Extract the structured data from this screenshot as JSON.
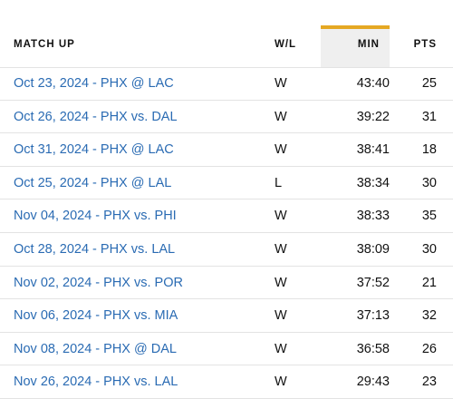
{
  "header": {
    "match_up": "MATCH UP",
    "wl": "W/L",
    "min": "MIN",
    "pts": "PTS"
  },
  "colors": {
    "link": "#2a6bb3",
    "sort_accent": "#e5a823",
    "sorted_column_bg": "#efefef"
  },
  "rows": [
    {
      "match": "Oct 23, 2024 - PHX @ LAC",
      "wl": "W",
      "min": "43:40",
      "pts": "25"
    },
    {
      "match": "Oct 26, 2024 - PHX vs. DAL",
      "wl": "W",
      "min": "39:22",
      "pts": "31"
    },
    {
      "match": "Oct 31, 2024 - PHX @ LAC",
      "wl": "W",
      "min": "38:41",
      "pts": "18"
    },
    {
      "match": "Oct 25, 2024 - PHX @ LAL",
      "wl": "L",
      "min": "38:34",
      "pts": "30"
    },
    {
      "match": "Nov 04, 2024 - PHX vs. PHI",
      "wl": "W",
      "min": "38:33",
      "pts": "35"
    },
    {
      "match": "Oct 28, 2024 - PHX vs. LAL",
      "wl": "W",
      "min": "38:09",
      "pts": "30"
    },
    {
      "match": "Nov 02, 2024 - PHX vs. POR",
      "wl": "W",
      "min": "37:52",
      "pts": "21"
    },
    {
      "match": "Nov 06, 2024 - PHX vs. MIA",
      "wl": "W",
      "min": "37:13",
      "pts": "32"
    },
    {
      "match": "Nov 08, 2024 - PHX @ DAL",
      "wl": "W",
      "min": "36:58",
      "pts": "26"
    },
    {
      "match": "Nov 26, 2024 - PHX vs. LAL",
      "wl": "W",
      "min": "29:43",
      "pts": "23"
    }
  ]
}
